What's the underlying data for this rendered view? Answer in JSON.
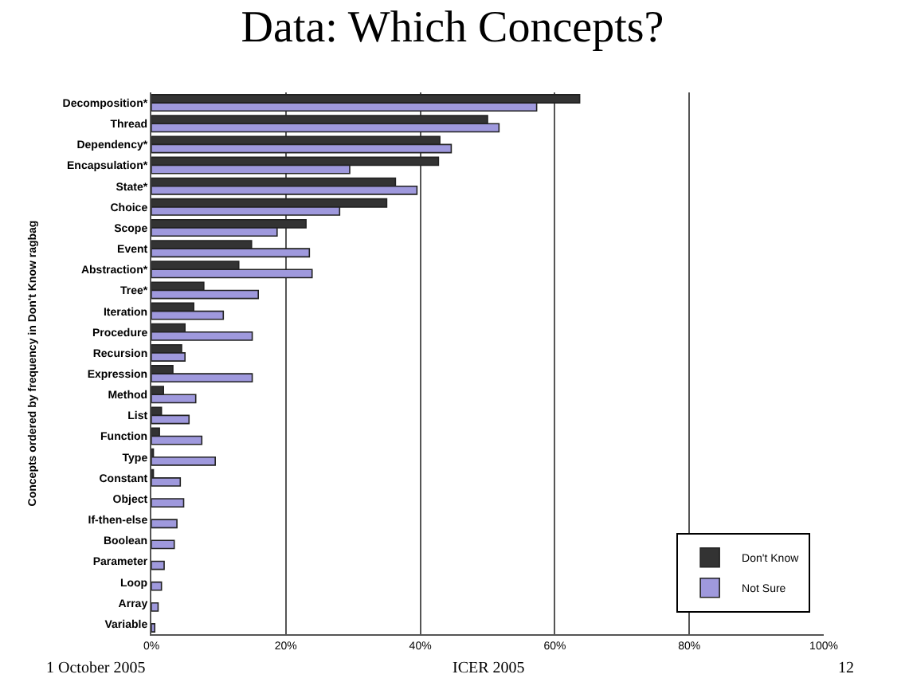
{
  "chart_data": {
    "type": "bar",
    "orientation": "horizontal",
    "title": "Data: Which Concepts?",
    "ylabel": "Concepts ordered by frequency in Don't Know ragbag",
    "categories": [
      "Decomposition*",
      "Thread",
      "Dependency*",
      "Encapsulation*",
      "State*",
      "Choice",
      "Scope",
      "Event",
      "Abstraction*",
      "Tree*",
      "Iteration",
      "Procedure",
      "Recursion",
      "Expression",
      "Method",
      "List",
      "Function",
      "Type",
      "Constant",
      "Object",
      "If-then-else",
      "Boolean",
      "Parameter",
      "Loop",
      "Array",
      "Variable"
    ],
    "series": [
      {
        "name": "Don't Know",
        "color": "#333333",
        "values": [
          63.7,
          50,
          42.9,
          42.7,
          36.3,
          35,
          23,
          14.9,
          13,
          7.8,
          6.3,
          5,
          4.5,
          3.2,
          1.8,
          1.5,
          1.2,
          0.3,
          0.3,
          0,
          0,
          0,
          0,
          0,
          0,
          0
        ]
      },
      {
        "name": "Not Sure",
        "color": "#9f99dd",
        "values": [
          57.3,
          51.7,
          44.6,
          29.5,
          39.5,
          28,
          18.7,
          23.5,
          23.9,
          15.9,
          10.7,
          15,
          5,
          15,
          6.6,
          5.6,
          7.5,
          9.5,
          4.3,
          4.8,
          3.8,
          3.4,
          1.9,
          1.5,
          1,
          0.5
        ]
      }
    ],
    "xlim": [
      0,
      100
    ],
    "xticks": [
      {
        "value": 0,
        "label": "0%"
      },
      {
        "value": 20,
        "label": "20%"
      },
      {
        "value": 40,
        "label": "40%"
      },
      {
        "value": 60,
        "label": "60%"
      },
      {
        "value": 80,
        "label": "80%"
      },
      {
        "value": 100,
        "label": "100%"
      }
    ],
    "grid": "x",
    "legend": "bottom right",
    "annotations": [
      "1 October 2005",
      "ICER 2005",
      "12"
    ]
  }
}
